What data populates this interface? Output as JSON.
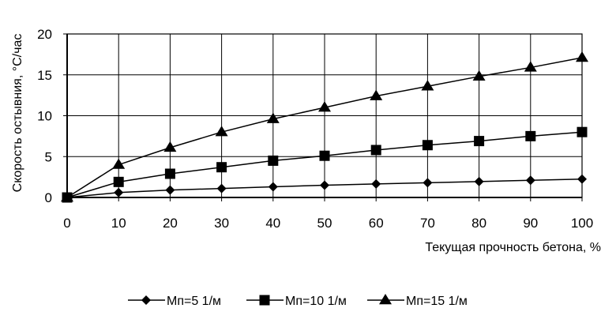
{
  "chart_data": {
    "type": "line",
    "title": "",
    "xlabel": "Текущая прочность бетона, %",
    "ylabel": "Скорость остывния, °С/час",
    "x": [
      0,
      10,
      20,
      30,
      40,
      50,
      60,
      70,
      80,
      90,
      100
    ],
    "x_ticks": [
      "0",
      "10",
      "20",
      "30",
      "40",
      "50",
      "60",
      "70",
      "80",
      "90",
      "100"
    ],
    "y_ticks": [
      "0",
      "5",
      "10",
      "15",
      "20"
    ],
    "xlim": [
      0,
      100
    ],
    "ylim": [
      0,
      20
    ],
    "grid": true,
    "legend_position": "bottom",
    "series": [
      {
        "name": "Мп=5 1/м",
        "marker": "diamond",
        "values": [
          0,
          0.6,
          0.9,
          1.1,
          1.3,
          1.5,
          1.65,
          1.8,
          1.95,
          2.1,
          2.25
        ]
      },
      {
        "name": "Мп=10 1/м",
        "marker": "square",
        "values": [
          0,
          1.9,
          2.9,
          3.7,
          4.5,
          5.1,
          5.8,
          6.4,
          6.9,
          7.5,
          8.0
        ]
      },
      {
        "name": "Мп=15 1/м",
        "marker": "triangle",
        "values": [
          0,
          4.0,
          6.1,
          8.0,
          9.6,
          11.0,
          12.4,
          13.6,
          14.8,
          15.9,
          17.1
        ]
      }
    ]
  }
}
